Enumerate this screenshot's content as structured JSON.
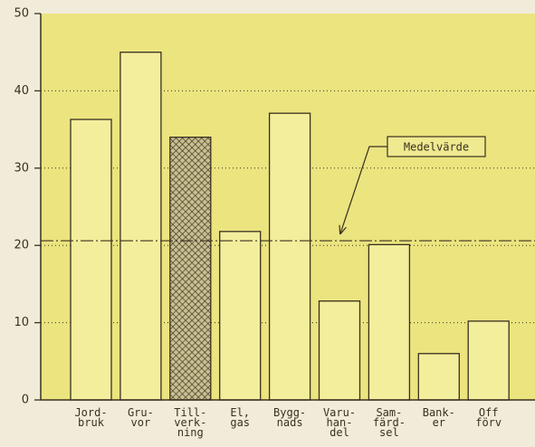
{
  "chart_data": {
    "type": "bar",
    "categories": [
      [
        "Jord-",
        "bruk"
      ],
      [
        "Gru-",
        "vor"
      ],
      [
        "Till-",
        "verk-",
        "ning"
      ],
      [
        "El,",
        "gas"
      ],
      [
        "Bygg-",
        "nads"
      ],
      [
        "Varu-",
        "han-",
        "del"
      ],
      [
        "Sam-",
        "färd-",
        "sel"
      ],
      [
        "Bank-",
        "er"
      ],
      [
        "Off",
        "förv"
      ]
    ],
    "values": [
      36.3,
      45,
      34,
      21.8,
      37.1,
      12.8,
      20.1,
      6,
      10.2
    ],
    "color": "#f2ee9c",
    "hatch_index": 2,
    "ylim": [
      0,
      50
    ],
    "yticks": [
      0,
      10,
      20,
      30,
      40,
      50
    ],
    "grid": true,
    "reference_line": {
      "label": "Medelvärde",
      "value": 20.6
    }
  }
}
